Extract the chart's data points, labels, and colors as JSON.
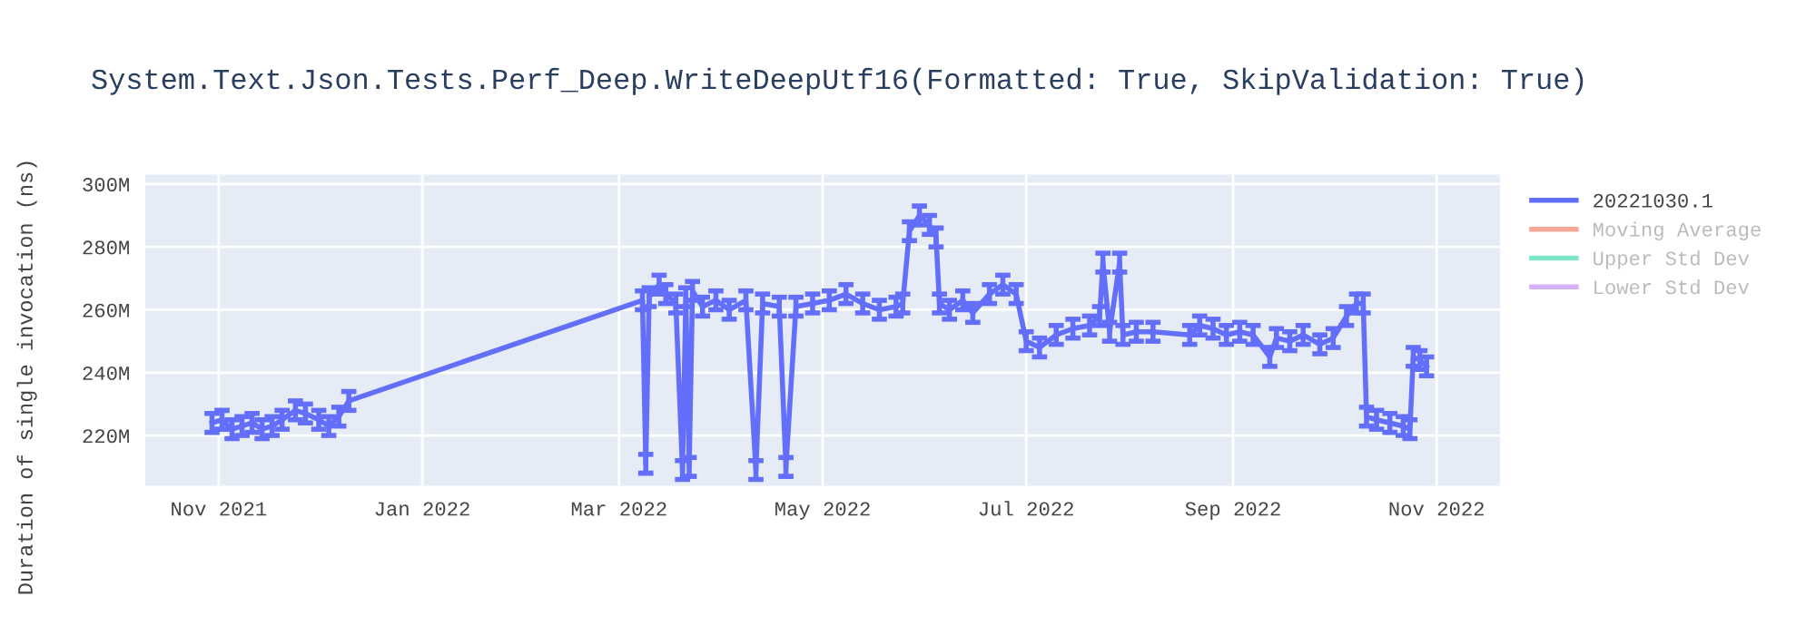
{
  "chart_data": {
    "type": "line",
    "title": "System.Text.Json.Tests.Perf_Deep.WriteDeepUtf16(Formatted: True, SkipValidation: True)",
    "ylabel": "Duration of single invocation (ns)",
    "x": [
      "2021-10-30",
      "2021-11-02",
      "2021-11-05",
      "2021-11-08",
      "2021-11-11",
      "2021-11-14",
      "2021-11-17",
      "2021-11-20",
      "2021-11-24",
      "2021-11-27",
      "2021-12-01",
      "2021-12-04",
      "2021-12-07",
      "2021-12-10",
      "2022-03-08",
      "2022-03-09",
      "2022-03-10",
      "2022-03-13",
      "2022-03-15",
      "2022-03-18",
      "2022-03-20",
      "2022-03-21",
      "2022-03-22",
      "2022-03-23",
      "2022-03-26",
      "2022-03-30",
      "2022-04-03",
      "2022-04-08",
      "2022-04-11",
      "2022-04-13",
      "2022-04-18",
      "2022-04-20",
      "2022-04-23",
      "2022-04-28",
      "2022-05-03",
      "2022-05-08",
      "2022-05-13",
      "2022-05-18",
      "2022-05-23",
      "2022-05-25",
      "2022-05-27",
      "2022-05-30",
      "2022-06-02",
      "2022-06-04",
      "2022-06-05",
      "2022-06-08",
      "2022-06-12",
      "2022-06-15",
      "2022-06-20",
      "2022-06-24",
      "2022-06-28",
      "2022-07-01",
      "2022-07-05",
      "2022-07-10",
      "2022-07-15",
      "2022-07-20",
      "2022-07-23",
      "2022-07-24",
      "2022-07-26",
      "2022-07-29",
      "2022-07-30",
      "2022-08-03",
      "2022-08-08",
      "2022-08-19",
      "2022-08-22",
      "2022-08-26",
      "2022-08-30",
      "2022-09-03",
      "2022-09-07",
      "2022-09-12",
      "2022-09-14",
      "2022-09-18",
      "2022-09-22",
      "2022-09-27",
      "2022-10-01",
      "2022-10-05",
      "2022-10-08",
      "2022-10-10",
      "2022-10-11",
      "2022-10-14",
      "2022-10-18",
      "2022-10-22",
      "2022-10-24",
      "2022-10-25",
      "2022-10-27",
      "2022-10-29"
    ],
    "series": [
      {
        "name": "20221030.1",
        "color": "#636efa",
        "values": [
          224000000,
          225000000,
          222000000,
          223000000,
          224000000,
          222000000,
          223000000,
          225000000,
          228000000,
          227000000,
          225000000,
          223000000,
          226000000,
          231000000,
          263000000,
          211000000,
          264000000,
          268000000,
          265000000,
          262000000,
          209000000,
          264000000,
          210000000,
          266000000,
          261000000,
          263000000,
          260000000,
          263000000,
          209000000,
          262000000,
          261000000,
          210000000,
          261000000,
          262000000,
          263000000,
          265000000,
          262000000,
          260000000,
          261000000,
          262000000,
          285000000,
          290000000,
          287000000,
          283000000,
          262000000,
          260000000,
          263000000,
          259000000,
          265000000,
          268000000,
          265000000,
          250000000,
          248000000,
          252000000,
          254000000,
          255000000,
          258000000,
          275000000,
          253000000,
          275000000,
          252000000,
          253000000,
          253000000,
          252000000,
          255000000,
          254000000,
          252000000,
          253000000,
          252000000,
          245000000,
          251000000,
          250000000,
          252000000,
          249000000,
          251000000,
          258000000,
          262000000,
          262000000,
          226000000,
          225000000,
          224000000,
          223000000,
          222000000,
          245000000,
          244000000,
          242000000
        ],
        "errors": [
          3000000,
          3000000,
          3000000,
          3000000,
          3000000,
          3000000,
          3000000,
          3000000,
          3000000,
          3000000,
          3000000,
          3000000,
          3000000,
          3000000,
          3000000,
          3000000,
          3000000,
          3000000,
          3000000,
          3000000,
          3000000,
          3000000,
          3000000,
          3000000,
          3000000,
          3000000,
          3000000,
          3000000,
          3000000,
          3000000,
          3000000,
          3000000,
          3000000,
          3000000,
          3000000,
          3000000,
          3000000,
          3000000,
          3000000,
          3000000,
          3000000,
          3000000,
          3000000,
          3000000,
          3000000,
          3000000,
          3000000,
          3000000,
          3000000,
          3000000,
          3000000,
          3000000,
          3000000,
          3000000,
          3000000,
          3000000,
          3000000,
          3000000,
          3000000,
          3000000,
          3000000,
          3000000,
          3000000,
          3000000,
          3000000,
          3000000,
          3000000,
          3000000,
          3000000,
          3000000,
          3000000,
          3000000,
          3000000,
          3000000,
          3000000,
          3000000,
          3000000,
          3000000,
          3000000,
          3000000,
          3000000,
          3000000,
          3000000,
          3000000,
          3000000,
          3000000
        ]
      },
      {
        "name": "Moving Average",
        "color": "#f7a999",
        "values": [
          null,
          null,
          null,
          null,
          null,
          null,
          null,
          null,
          null,
          null,
          null,
          null,
          null,
          null,
          null,
          null,
          null,
          null,
          null,
          null,
          null,
          null,
          null,
          null,
          null,
          null,
          null,
          null,
          null,
          null,
          null,
          null,
          null,
          null,
          null,
          null,
          null,
          null,
          null,
          null,
          null,
          null,
          null,
          null,
          null,
          null,
          null,
          null,
          null,
          null,
          null,
          null,
          null,
          null,
          null,
          null,
          null,
          null,
          null,
          null,
          null,
          null,
          null,
          null,
          null,
          null,
          null,
          null,
          null,
          null,
          null,
          null,
          null,
          null,
          null,
          null,
          null,
          null,
          null,
          null,
          null,
          null,
          null,
          null,
          null,
          null
        ]
      },
      {
        "name": "Upper Std Dev",
        "color": "#7fe5ca",
        "values": [
          null,
          null,
          null,
          null,
          null,
          null,
          null,
          null,
          null,
          null,
          null,
          null,
          null,
          null,
          null,
          null,
          null,
          null,
          null,
          null,
          null,
          null,
          null,
          null,
          null,
          null,
          null,
          null,
          null,
          null,
          null,
          null,
          null,
          null,
          null,
          null,
          null,
          null,
          null,
          null,
          null,
          null,
          null,
          null,
          null,
          null,
          null,
          null,
          null,
          null,
          null,
          null,
          null,
          null,
          null,
          null,
          null,
          null,
          null,
          null,
          null,
          null,
          null,
          null,
          null,
          null,
          null,
          null,
          null,
          null,
          null,
          null,
          null,
          null,
          null,
          null,
          null,
          null,
          null,
          null,
          null,
          null,
          null,
          null,
          null,
          null
        ]
      },
      {
        "name": "Lower Std Dev",
        "color": "#d5b1fc",
        "values": [
          null,
          null,
          null,
          null,
          null,
          null,
          null,
          null,
          null,
          null,
          null,
          null,
          null,
          null,
          null,
          null,
          null,
          null,
          null,
          null,
          null,
          null,
          null,
          null,
          null,
          null,
          null,
          null,
          null,
          null,
          null,
          null,
          null,
          null,
          null,
          null,
          null,
          null,
          null,
          null,
          null,
          null,
          null,
          null,
          null,
          null,
          null,
          null,
          null,
          null,
          null,
          null,
          null,
          null,
          null,
          null,
          null,
          null,
          null,
          null,
          null,
          null,
          null,
          null,
          null,
          null,
          null,
          null,
          null,
          null,
          null,
          null,
          null,
          null,
          null,
          null,
          null,
          null,
          null,
          null,
          null,
          null,
          null,
          null,
          null,
          null
        ]
      }
    ],
    "xlim": [
      "2021-10-10",
      "2022-11-20"
    ],
    "xticks": [
      {
        "value": "2021-11-01",
        "label": "Nov 2021"
      },
      {
        "value": "2022-01-01",
        "label": "Jan 2022"
      },
      {
        "value": "2022-03-01",
        "label": "Mar 2022"
      },
      {
        "value": "2022-05-01",
        "label": "May 2022"
      },
      {
        "value": "2022-07-01",
        "label": "Jul 2022"
      },
      {
        "value": "2022-09-01",
        "label": "Sep 2022"
      },
      {
        "value": "2022-11-01",
        "label": "Nov 2022"
      }
    ],
    "ylim": [
      204000000,
      303000000
    ],
    "yticks": [
      {
        "value": 220000000,
        "label": "220M"
      },
      {
        "value": 240000000,
        "label": "240M"
      },
      {
        "value": 260000000,
        "label": "260M"
      },
      {
        "value": 280000000,
        "label": "280M"
      },
      {
        "value": 300000000,
        "label": "300M"
      }
    ],
    "grid": true,
    "legend": "top right",
    "marker": "none",
    "line_style": "solid"
  }
}
